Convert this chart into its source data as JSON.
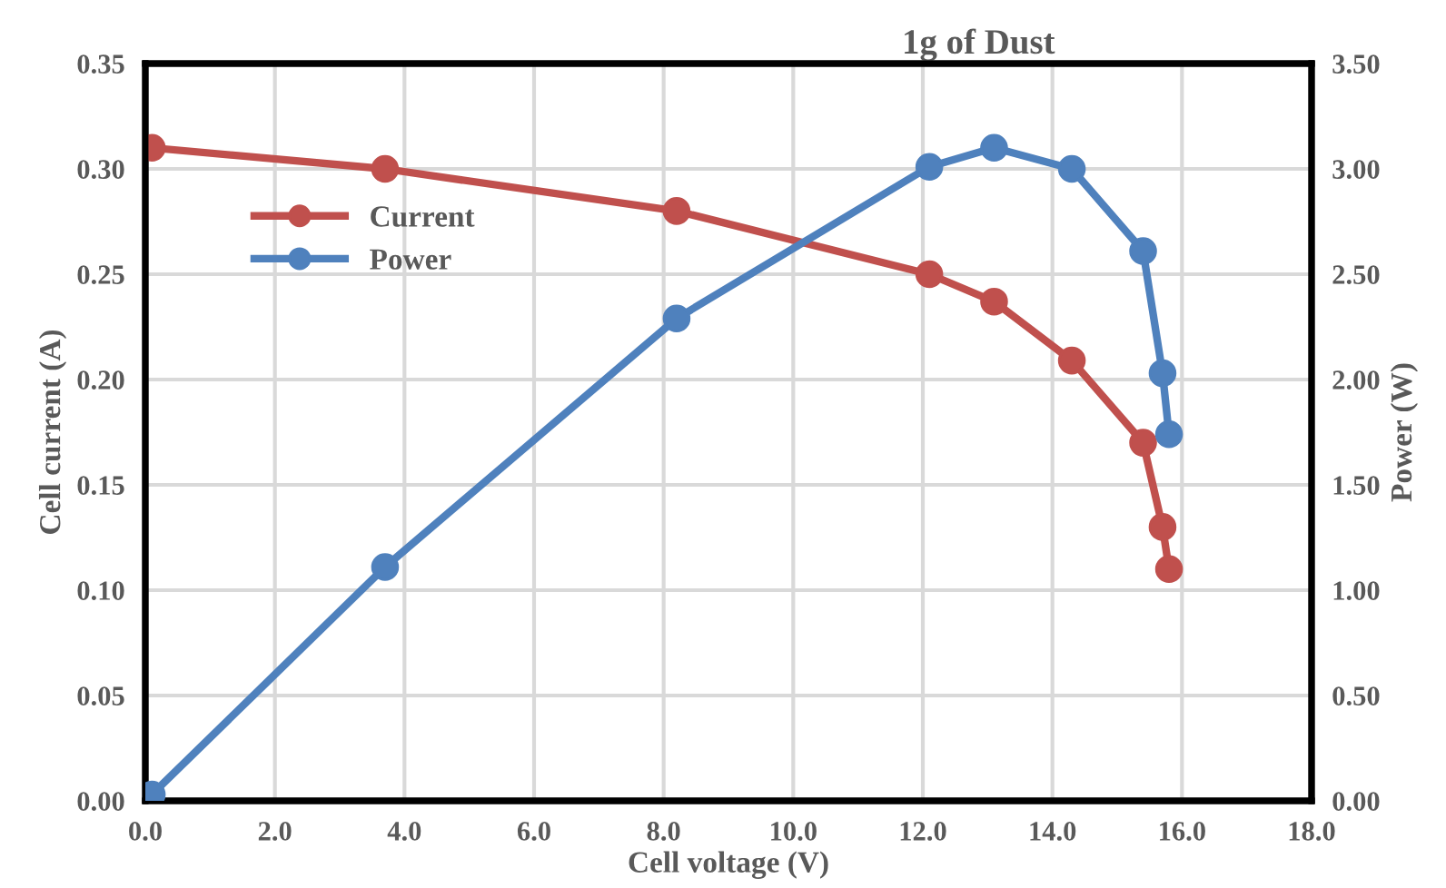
{
  "chart_data": {
    "type": "line",
    "title": "1g of Dust",
    "xlabel": "Cell voltage (V)",
    "ylabel": "Cell current (A)",
    "y2label": "Power (W)",
    "x": [
      0.1,
      3.7,
      8.2,
      12.1,
      13.1,
      14.3,
      15.4,
      15.7,
      15.8
    ],
    "series": [
      {
        "name": "Current",
        "color": "#c0504d",
        "values": [
          0.31,
          0.3,
          0.28,
          0.25,
          0.237,
          0.209,
          0.17,
          0.13,
          0.11
        ]
      },
      {
        "name": "Power",
        "color": "#4f81bd",
        "axis": "y2",
        "values": [
          0.03,
          1.11,
          2.29,
          3.01,
          3.1,
          3.0,
          2.61,
          2.03,
          1.74
        ]
      }
    ],
    "xlim": [
      0,
      18
    ],
    "xticks": [
      {
        "value": 0,
        "label": "0.0"
      },
      {
        "value": 2,
        "label": "2.0"
      },
      {
        "value": 4,
        "label": "4.0"
      },
      {
        "value": 6,
        "label": "6.0"
      },
      {
        "value": 8,
        "label": "8.0"
      },
      {
        "value": 10,
        "label": "10.0"
      },
      {
        "value": 12,
        "label": "12.0"
      },
      {
        "value": 14,
        "label": "14.0"
      },
      {
        "value": 16,
        "label": "16.0"
      },
      {
        "value": 18,
        "label": "18.0"
      }
    ],
    "ylim": [
      0,
      0.35
    ],
    "yticks": [
      {
        "value": 0,
        "label": "0.00"
      },
      {
        "value": 0.05,
        "label": "0.05"
      },
      {
        "value": 0.1,
        "label": "0.10"
      },
      {
        "value": 0.15,
        "label": "0.15"
      },
      {
        "value": 0.2,
        "label": "0.20"
      },
      {
        "value": 0.25,
        "label": "0.25"
      },
      {
        "value": 0.3,
        "label": "0.30"
      },
      {
        "value": 0.35,
        "label": "0.35"
      }
    ],
    "y2lim": [
      0,
      3.5
    ],
    "y2ticks": [
      {
        "value": 0,
        "label": "0.00"
      },
      {
        "value": 0.5,
        "label": "0.50"
      },
      {
        "value": 1,
        "label": "1.00"
      },
      {
        "value": 1.5,
        "label": "1.50"
      },
      {
        "value": 2,
        "label": "2.00"
      },
      {
        "value": 2.5,
        "label": "2.50"
      },
      {
        "value": 3,
        "label": "3.00"
      },
      {
        "value": 3.5,
        "label": "3.50"
      }
    ],
    "grid": true,
    "legend": "left",
    "marker": "circle",
    "line_style": "solid"
  }
}
